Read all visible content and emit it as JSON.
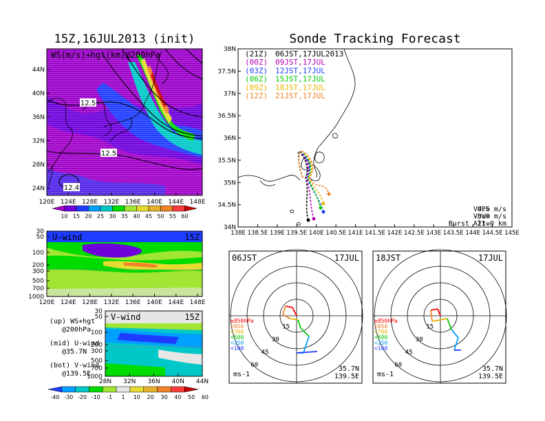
{
  "left_title": "15Z,16JUL2013 (init)",
  "right_title": "Sonde Tracking Forecast",
  "ws_map": {
    "label": "WS(m/s)+hgt(km)@200hPa",
    "lat_ticks": [
      "44N",
      "40N",
      "36N",
      "32N",
      "28N",
      "24N"
    ],
    "lon_ticks": [
      "120E",
      "124E",
      "128E",
      "132E",
      "136E",
      "140E",
      "144E",
      "148E"
    ],
    "contour_labels": [
      "12.5",
      "12.5",
      "12.4"
    ],
    "colorbar_ticks": [
      "10",
      "15",
      "20",
      "25",
      "30",
      "35",
      "40",
      "45",
      "50",
      "55",
      "60"
    ],
    "colorbar_colors": [
      "#a000c8",
      "#6e00dc",
      "#1e3cff",
      "#00a0ff",
      "#00c8c8",
      "#00dc00",
      "#a0e632",
      "#e6dc32",
      "#e6af2d",
      "#f08228",
      "#fa3c3c",
      "#c80000"
    ]
  },
  "u_wind": {
    "label": "U-wind",
    "time": "15Z",
    "p_ticks": [
      "30",
      "50",
      "100",
      "200",
      "300",
      "500",
      "700",
      "1000"
    ],
    "lon_ticks": [
      "120E",
      "124E",
      "128E",
      "132E",
      "136E",
      "140E",
      "144E",
      "148E"
    ]
  },
  "v_wind": {
    "label": "V-wind",
    "time": "15Z",
    "p_ticks": [
      "30",
      "50",
      "100",
      "200",
      "300",
      "500",
      "700",
      "1000"
    ],
    "lat_ticks": [
      "28N",
      "32N",
      "36N",
      "40N",
      "44N"
    ]
  },
  "legend_notes": [
    {
      "a": "(up) WS+hgt",
      "b": "@200hPa"
    },
    {
      "a": "(mid) U-wind",
      "b": "@35.7N"
    },
    {
      "a": "(bot) V-wind",
      "b": "@139.5E"
    }
  ],
  "wind_colorbar": {
    "ticks": [
      "-40",
      "-30",
      "-20",
      "-10",
      "-1",
      "1",
      "10",
      "20",
      "30",
      "40",
      "50",
      "60"
    ],
    "colors": [
      "#1e3cff",
      "#00a0ff",
      "#00c8c8",
      "#00dc00",
      "#a0e632",
      "#e6e6e6",
      "#e6dc32",
      "#e6af2d",
      "#f08228",
      "#fa3c3c",
      "#c80000"
    ]
  },
  "track_map": {
    "lat_ticks": [
      "38N",
      "37.5N",
      "37N",
      "36.5N",
      "36N",
      "35.5N",
      "35N",
      "34.5N",
      "34N"
    ],
    "lon_ticks": [
      "138E",
      "138.5E",
      "139E",
      "139.5E",
      "140E",
      "140.5E",
      "141E",
      "141.5E",
      "142E",
      "142.5E",
      "143E",
      "143.5E",
      "144E",
      "144.5E",
      "145E"
    ],
    "launches": [
      {
        "code": "(21Z)",
        "time": "06JST,17JUL2013",
        "color": "#000000"
      },
      {
        "code": "(00Z)",
        "time": "09JST,17JUL",
        "color": "#b400b4"
      },
      {
        "code": "(03Z)",
        "time": "12JST,17JUL",
        "color": "#1e3cff"
      },
      {
        "code": "(06Z)",
        "time": "15JST,17JUL",
        "color": "#00c800"
      },
      {
        "code": "(09Z)",
        "time": "18JST,17JUL",
        "color": "#e6b400"
      },
      {
        "code": "(12Z)",
        "time": "21JST,17JUL",
        "color": "#f08228"
      }
    ],
    "params": [
      {
        "label": "VUP=",
        "value": "4.5 m/s"
      },
      {
        "label": "VDW=",
        "value": "-3.0 m/s"
      },
      {
        "label": "Burst Alt=",
        "value": "21.0 km"
      }
    ]
  },
  "hodographs": [
    {
      "time": "06JST",
      "date": "17JUL",
      "ring_labels": [
        "15",
        "30",
        "45",
        "60"
      ],
      "unit": "ms-1",
      "lat": "35.7N",
      "lon": "139.5E",
      "levels": [
        "≥850hPa",
        "<850",
        "<700",
        "<500",
        "<250",
        "<100"
      ]
    },
    {
      "time": "18JST",
      "date": "17JUL",
      "ring_labels": [
        "15",
        "30",
        "45",
        "60"
      ],
      "unit": "ms-1",
      "lat": "35.7N",
      "lon": "139.5E",
      "levels": [
        "≥850hPa",
        "<850",
        "<700",
        "<500",
        "<250",
        "<100"
      ]
    }
  ],
  "level_colors": [
    "#ff0000",
    "#f08228",
    "#e6b400",
    "#00c800",
    "#00a0ff",
    "#1e3cff"
  ]
}
